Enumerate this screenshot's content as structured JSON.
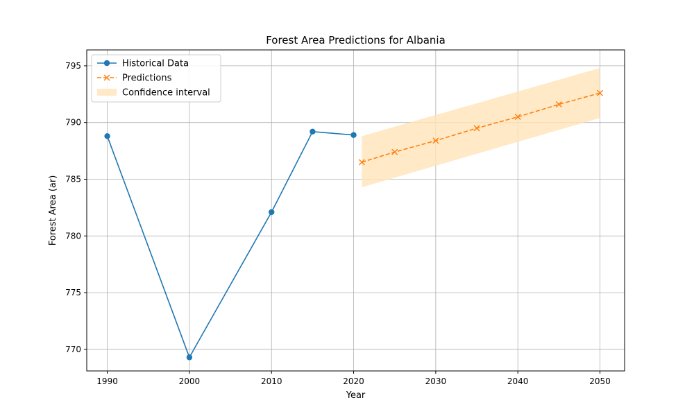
{
  "chart_data": {
    "type": "line",
    "title": "Forest Area Predictions for Albania",
    "xlabel": "Year",
    "ylabel": "Forest Area (ar)",
    "xlim": [
      1987.5,
      2053
    ],
    "ylim": [
      768.1,
      796.4
    ],
    "xticks": [
      "1990",
      "2000",
      "2010",
      "2020",
      "2030",
      "2040",
      "2050"
    ],
    "yticks": [
      "770",
      "775",
      "780",
      "785",
      "790",
      "795"
    ],
    "grid": true,
    "legend_position": "top-left",
    "series": [
      {
        "name": "Historical Data",
        "color": "#1f77b4",
        "style": "solid",
        "marker": "circle",
        "x": [
          1990,
          2000,
          2010,
          2015,
          2020
        ],
        "y": [
          788.8,
          769.3,
          782.1,
          789.2,
          788.9
        ]
      },
      {
        "name": "Predictions",
        "color": "#ff7f0e",
        "style": "dashed",
        "marker": "x",
        "x": [
          2021,
          2025,
          2030,
          2035,
          2040,
          2045,
          2050
        ],
        "y": [
          786.5,
          787.4,
          788.4,
          789.5,
          790.5,
          791.6,
          792.6
        ]
      }
    ],
    "bands": [
      {
        "name": "Confidence interval",
        "color": "#ffe3b8",
        "x": [
          2021,
          2050
        ],
        "lower": [
          784.3,
          790.4
        ],
        "upper": [
          788.8,
          794.8
        ]
      }
    ]
  }
}
